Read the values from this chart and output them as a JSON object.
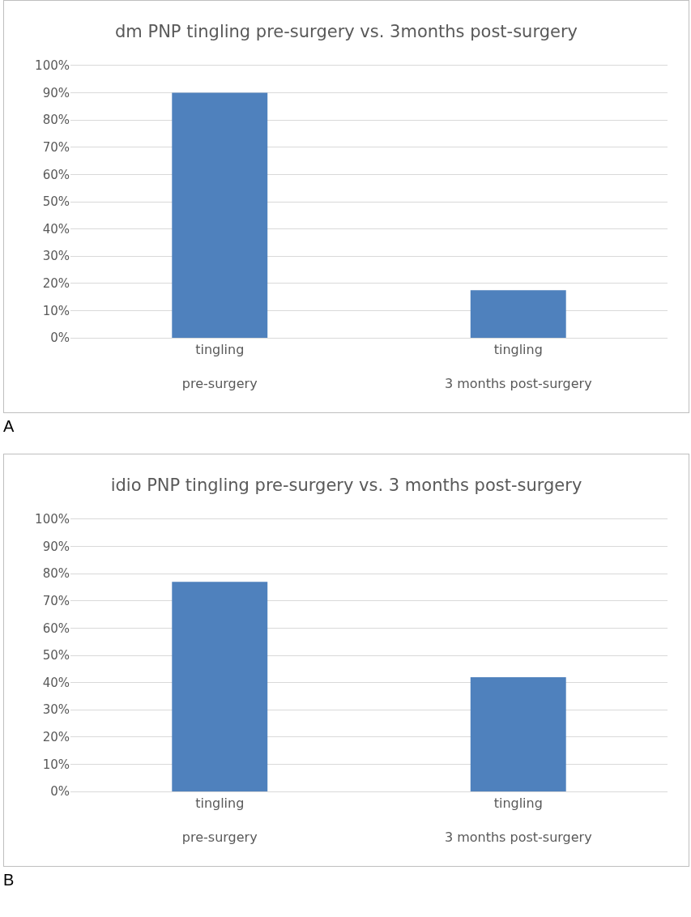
{
  "chart_data": [
    {
      "type": "bar",
      "title": "dm PNP tingling pre-surgery vs. 3months post-surgery",
      "categories": [
        "tingling\npre-surgery",
        "tingling\n3 months post-surgery"
      ],
      "values": [
        90,
        17.5
      ],
      "color": "#4f81bd",
      "ylim": [
        0,
        100
      ],
      "yticks": [
        {
          "value": 0,
          "label": "0%"
        },
        {
          "value": 10,
          "label": "10%"
        },
        {
          "value": 20,
          "label": "20%"
        },
        {
          "value": 30,
          "label": "30%"
        },
        {
          "value": 40,
          "label": "40%"
        },
        {
          "value": 50,
          "label": "50%"
        },
        {
          "value": 60,
          "label": "60%"
        },
        {
          "value": 70,
          "label": "70%"
        },
        {
          "value": 80,
          "label": "80%"
        },
        {
          "value": 90,
          "label": "90%"
        },
        {
          "value": 100,
          "label": "100%"
        }
      ],
      "grid": "y",
      "annotations": [
        "A"
      ]
    },
    {
      "type": "bar",
      "title": "idio PNP tingling pre-surgery vs. 3 months post-surgery",
      "categories": [
        "tingling\npre-surgery",
        "tingling\n3 months post-surgery"
      ],
      "values": [
        77,
        42
      ],
      "color": "#4f81bd",
      "ylim": [
        0,
        100
      ],
      "yticks": [
        {
          "value": 0,
          "label": "0%"
        },
        {
          "value": 10,
          "label": "10%"
        },
        {
          "value": 20,
          "label": "20%"
        },
        {
          "value": 30,
          "label": "30%"
        },
        {
          "value": 40,
          "label": "40%"
        },
        {
          "value": 50,
          "label": "50%"
        },
        {
          "value": 60,
          "label": "60%"
        },
        {
          "value": 70,
          "label": "70%"
        },
        {
          "value": 80,
          "label": "80%"
        },
        {
          "value": 90,
          "label": "90%"
        },
        {
          "value": 100,
          "label": "100%"
        }
      ],
      "grid": "y",
      "annotations": [
        "B"
      ]
    }
  ]
}
